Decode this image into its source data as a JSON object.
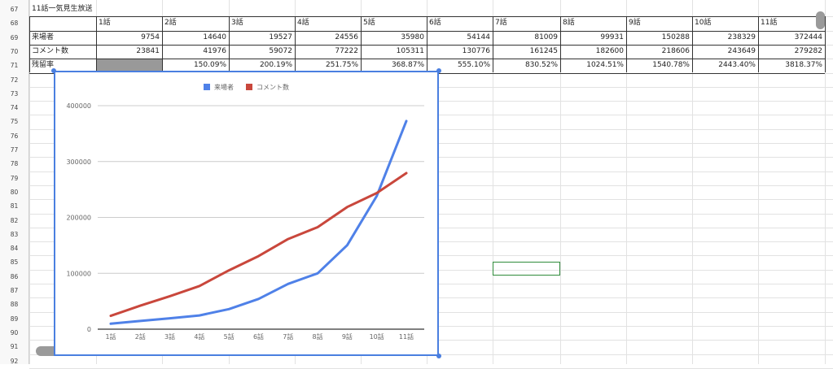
{
  "sheet": {
    "row_numbers": [
      "67",
      "68",
      "69",
      "70",
      "71",
      "72",
      "73",
      "74",
      "75",
      "76",
      "77",
      "78",
      "79",
      "80",
      "81",
      "82",
      "83",
      "84",
      "85",
      "86",
      "87",
      "88",
      "89",
      "90",
      "91",
      "92"
    ],
    "title": "11話一気見生放送",
    "episode_headers": [
      "1話",
      "2話",
      "3話",
      "4話",
      "5話",
      "6話",
      "7話",
      "8話",
      "9話",
      "10話",
      "11話"
    ],
    "rows": [
      {
        "label": "来場者",
        "values": [
          "9754",
          "14640",
          "19527",
          "24556",
          "35980",
          "54144",
          "81009",
          "99931",
          "150288",
          "238329",
          "372444"
        ]
      },
      {
        "label": "コメント数",
        "values": [
          "23841",
          "41976",
          "59072",
          "77222",
          "105311",
          "130776",
          "161245",
          "182600",
          "218606",
          "243649",
          "279282"
        ]
      },
      {
        "label": "残留率",
        "values": [
          "",
          "150.09%",
          "200.19%",
          "251.75%",
          "368.87%",
          "555.10%",
          "830.52%",
          "1024.51%",
          "1540.78%",
          "2443.40%",
          "3818.37%"
        ]
      }
    ]
  },
  "chart_data": {
    "type": "line",
    "categories": [
      "1話",
      "2話",
      "3話",
      "4話",
      "5話",
      "6話",
      "7話",
      "8話",
      "9話",
      "10話",
      "11話"
    ],
    "series": [
      {
        "name": "来場者",
        "color": "#4f81e8",
        "values": [
          9754,
          14640,
          19527,
          24556,
          35980,
          54144,
          81009,
          99931,
          150288,
          238329,
          372444
        ]
      },
      {
        "name": "コメント数",
        "color": "#c9473c",
        "values": [
          23841,
          41976,
          59072,
          77222,
          105311,
          130776,
          161245,
          182600,
          218606,
          243649,
          279282
        ]
      }
    ],
    "y_ticks": [
      "0",
      "100000",
      "200000",
      "300000",
      "400000"
    ],
    "ylim": [
      0,
      400000
    ],
    "grid": true,
    "legend_position": "top"
  }
}
